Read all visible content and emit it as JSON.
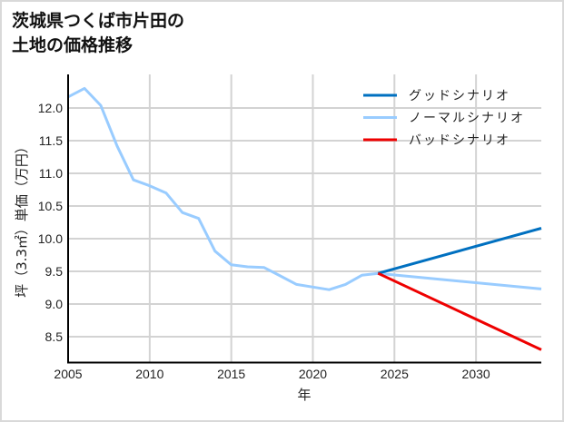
{
  "title_lines": [
    "茨城県つくば市片田の",
    "土地の価格推移"
  ],
  "chart_data": {
    "type": "line",
    "title": "茨城県つくば市片田の土地の価格推移",
    "xlabel": "年",
    "ylabel": "坪（3.3㎡）単価（万円）",
    "xlim": [
      2005,
      2034
    ],
    "ylim": [
      8.1,
      12.5
    ],
    "x_ticks": [
      2005,
      2010,
      2015,
      2020,
      2025,
      2030
    ],
    "y_ticks": [
      8.5,
      9.0,
      9.5,
      10.0,
      10.5,
      11.0,
      11.5,
      12.0
    ],
    "y_tick_labels": [
      "8.5",
      "9.0",
      "9.5",
      "10.0",
      "10.5",
      "11.0",
      "11.5",
      "12.0"
    ],
    "grid": true,
    "legend_position": "upper right",
    "series": [
      {
        "name": "グッドシナリオ",
        "color": "#0070c0",
        "x": [
          2024,
          2034
        ],
        "values": [
          9.47,
          10.16
        ]
      },
      {
        "name": "ノーマルシナリオ",
        "color": "#99ccff",
        "x": [
          2005,
          2006,
          2007,
          2008,
          2009,
          2010,
          2011,
          2012,
          2013,
          2014,
          2015,
          2016,
          2017,
          2018,
          2019,
          2020,
          2021,
          2022,
          2023,
          2024,
          2034
        ],
        "values": [
          12.17,
          12.3,
          12.04,
          11.42,
          10.9,
          10.81,
          10.7,
          10.4,
          10.31,
          9.81,
          9.6,
          9.57,
          9.56,
          9.43,
          9.3,
          9.26,
          9.22,
          9.3,
          9.44,
          9.47,
          9.23
        ]
      },
      {
        "name": "バッドシナリオ",
        "color": "#ee0000",
        "x": [
          2024,
          2034
        ],
        "values": [
          9.47,
          8.3
        ]
      }
    ]
  }
}
